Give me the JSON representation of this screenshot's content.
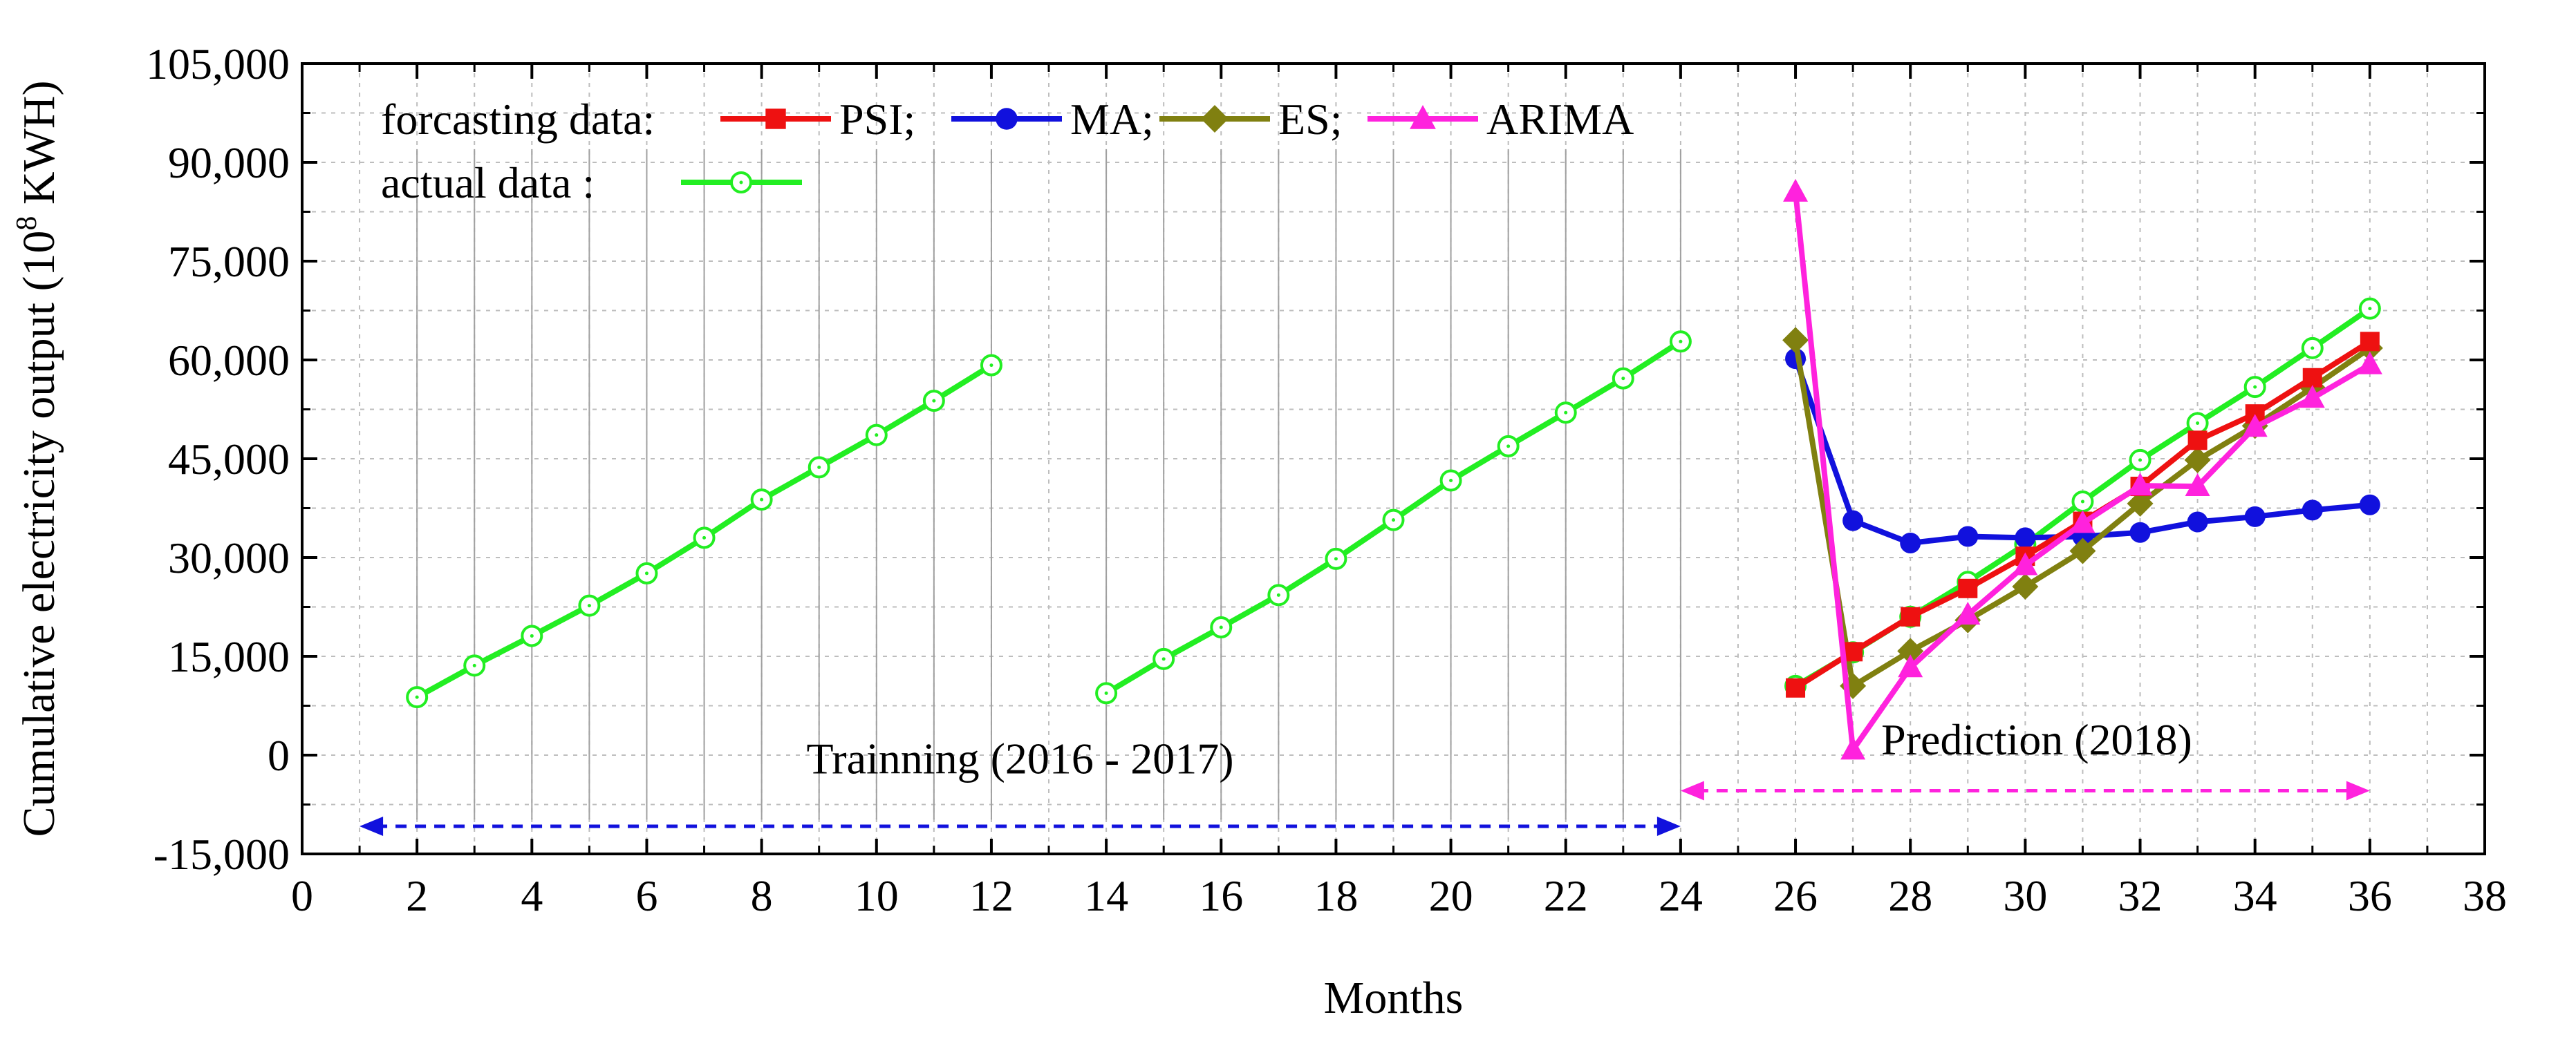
{
  "chart_data": {
    "type": "line",
    "xlabel": "Months",
    "ylabel_main": "Cumulative electricity output (10",
    "ylabel_sup": "8",
    "ylabel_end": " KWH)",
    "xlim": [
      0,
      38
    ],
    "ylim": [
      -15000,
      105000
    ],
    "xticks": [
      0,
      2,
      4,
      6,
      8,
      10,
      12,
      14,
      16,
      18,
      20,
      22,
      24,
      26,
      28,
      30,
      32,
      34,
      36,
      38
    ],
    "yticks": [
      -15000,
      0,
      15000,
      30000,
      45000,
      60000,
      75000,
      90000,
      105000
    ],
    "ytick_labels": [
      "-15,000",
      "0",
      "15,000",
      "30,000",
      "45,000",
      "60,000",
      "75,000",
      "90,000",
      "105,000"
    ],
    "grid": true,
    "legend": {
      "forecast_label": "forcasting data:",
      "actual_label": "actual data :",
      "position": "top-left"
    },
    "series": [
      {
        "name": "actual",
        "legend_label": "",
        "color": "#22ee22",
        "marker": "open-circle",
        "segments": [
          {
            "x": [
              2,
              3,
              4,
              5,
              6,
              7,
              8,
              9,
              10,
              11,
              12
            ],
            "y": [
              8800,
              13600,
              18100,
              22700,
              27600,
              33000,
              38800,
              43700,
              48600,
              53800,
              59200
            ]
          },
          {
            "x": [
              14,
              15,
              16,
              17,
              18,
              19,
              20,
              21,
              22,
              23,
              24
            ],
            "y": [
              9400,
              14600,
              19400,
              24300,
              29800,
              35700,
              41700,
              46900,
              52000,
              57200,
              62800
            ]
          },
          {
            "x": [
              26,
              27,
              28,
              29,
              30,
              31,
              32,
              33,
              34,
              35,
              36
            ],
            "y": [
              10500,
              15600,
              21000,
              26300,
              32000,
              38500,
              44800,
              50400,
              55900,
              61800,
              67800
            ]
          }
        ]
      },
      {
        "name": "PSI",
        "legend_label": "PSI;",
        "color": "#ee1111",
        "marker": "square",
        "segments": [
          {
            "x": [
              26,
              27,
              28,
              29,
              30,
              31,
              32,
              33,
              34,
              35,
              36
            ],
            "y": [
              10200,
              15700,
              21000,
              25300,
              30200,
              35500,
              40800,
              47800,
              51800,
              57300,
              62800
            ]
          }
        ]
      },
      {
        "name": "MA",
        "legend_label": "MA;",
        "color": "#1111dd",
        "marker": "circle",
        "segments": [
          {
            "x": [
              26,
              27,
              28,
              29,
              30,
              31,
              32,
              33,
              34,
              35,
              36
            ],
            "y": [
              60200,
              35600,
              32200,
              33200,
              33000,
              33200,
              33800,
              35400,
              36200,
              37200,
              38000
            ]
          }
        ]
      },
      {
        "name": "ES",
        "legend_label": "ES;",
        "color": "#808010",
        "marker": "diamond",
        "segments": [
          {
            "x": [
              26,
              27,
              28,
              29,
              30,
              31,
              32,
              33,
              34,
              35,
              36
            ],
            "y": [
              63000,
              10500,
              15800,
              20500,
              25600,
              31000,
              38200,
              44800,
              50000,
              55800,
              61800
            ]
          }
        ]
      },
      {
        "name": "ARIMA",
        "legend_label": "ARIMA",
        "color": "#ff22dd",
        "marker": "triangle",
        "segments": [
          {
            "x": [
              26,
              27,
              28,
              29,
              30,
              31,
              32,
              33,
              34,
              35,
              36
            ],
            "y": [
              85500,
              800,
              13300,
              21300,
              28800,
              35200,
              40900,
              40800,
              49800,
              54200,
              59300
            ]
          }
        ]
      }
    ],
    "annotations": [
      {
        "name": "training-arrow",
        "text": "Trainning (2016 - 2017)",
        "x_from": 1,
        "x_to": 24,
        "y_arrow": -10800,
        "text_x": 12.5,
        "text_y": -2800,
        "color": "#1111dd"
      },
      {
        "name": "prediction-arrow",
        "text": "Prediction (2018)",
        "x_from": 24,
        "x_to": 36,
        "y_arrow": -5400,
        "text_x": 30.2,
        "text_y": 100,
        "color": "#ff22dd"
      }
    ]
  }
}
